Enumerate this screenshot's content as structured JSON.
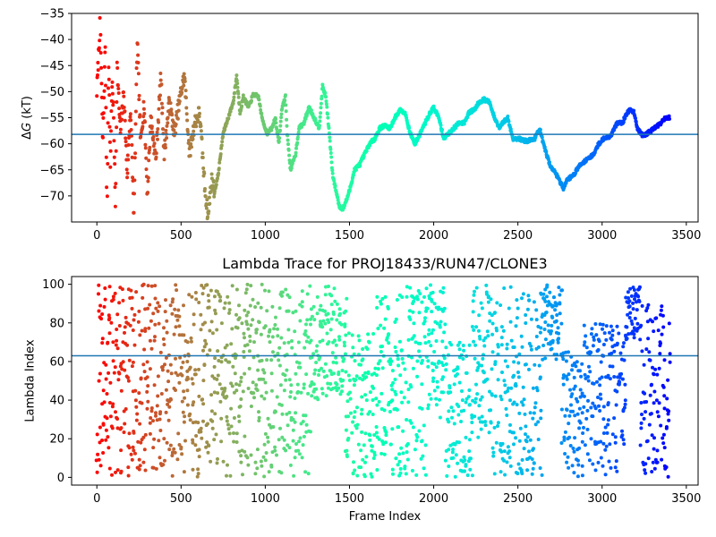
{
  "chart_data": [
    {
      "type": "scatter",
      "title": "",
      "xlabel": "",
      "ylabel": "ΔG (kT)",
      "ylabel_prefix": "Δ",
      "ylabel_italic": "G",
      "ylabel_suffix": " (kT)",
      "xlim": [
        -150,
        3570
      ],
      "ylim": [
        -75,
        -35
      ],
      "xticks": [
        0,
        500,
        1000,
        1500,
        2000,
        2500,
        3000,
        3500
      ],
      "yticks": [
        -70,
        -65,
        -60,
        -55,
        -50,
        -45,
        -40,
        -35
      ],
      "hline": -58.2,
      "hline_color": "#1f77b4",
      "colormap": "rainbow_reversed",
      "frames": 3400,
      "trace_keypoints": [
        [
          0,
          -50
        ],
        [
          20,
          -36
        ],
        [
          35,
          -60
        ],
        [
          50,
          -41
        ],
        [
          60,
          -75
        ],
        [
          70,
          -44
        ],
        [
          80,
          -64
        ],
        [
          90,
          -48
        ],
        [
          100,
          -55
        ],
        [
          110,
          -72
        ],
        [
          120,
          -45
        ],
        [
          140,
          -58
        ],
        [
          160,
          -50
        ],
        [
          180,
          -66
        ],
        [
          200,
          -53
        ],
        [
          220,
          -74
        ],
        [
          240,
          -40
        ],
        [
          260,
          -60
        ],
        [
          280,
          -52
        ],
        [
          300,
          -70
        ],
        [
          320,
          -55
        ],
        [
          350,
          -63
        ],
        [
          380,
          -47
        ],
        [
          400,
          -62
        ],
        [
          430,
          -52
        ],
        [
          460,
          -58
        ],
        [
          500,
          -50
        ],
        [
          520,
          -47
        ],
        [
          550,
          -62
        ],
        [
          580,
          -56
        ],
        [
          610,
          -54
        ],
        [
          640,
          -68
        ],
        [
          660,
          -74
        ],
        [
          680,
          -67
        ],
        [
          700,
          -69
        ],
        [
          720,
          -66
        ],
        [
          750,
          -58
        ],
        [
          780,
          -55
        ],
        [
          810,
          -52
        ],
        [
          830,
          -47
        ],
        [
          850,
          -54
        ],
        [
          870,
          -51
        ],
        [
          900,
          -53
        ],
        [
          930,
          -50.5
        ],
        [
          960,
          -51
        ],
        [
          980,
          -55
        ],
        [
          1010,
          -58
        ],
        [
          1040,
          -57
        ],
        [
          1060,
          -55
        ],
        [
          1080,
          -60
        ],
        [
          1100,
          -53
        ],
        [
          1120,
          -51
        ],
        [
          1130,
          -58
        ],
        [
          1150,
          -65
        ],
        [
          1180,
          -62
        ],
        [
          1200,
          -57
        ],
        [
          1230,
          -56
        ],
        [
          1260,
          -53
        ],
        [
          1290,
          -55
        ],
        [
          1320,
          -57
        ],
        [
          1340,
          -49
        ],
        [
          1360,
          -51
        ],
        [
          1380,
          -58
        ],
        [
          1400,
          -66
        ],
        [
          1420,
          -69
        ],
        [
          1440,
          -72
        ],
        [
          1460,
          -72.5
        ],
        [
          1480,
          -71
        ],
        [
          1500,
          -69
        ],
        [
          1530,
          -65
        ],
        [
          1560,
          -64
        ],
        [
          1590,
          -62
        ],
        [
          1620,
          -60
        ],
        [
          1650,
          -59
        ],
        [
          1680,
          -57
        ],
        [
          1710,
          -56.5
        ],
        [
          1740,
          -57
        ],
        [
          1770,
          -55
        ],
        [
          1800,
          -53.5
        ],
        [
          1830,
          -54
        ],
        [
          1860,
          -58
        ],
        [
          1890,
          -60
        ],
        [
          1920,
          -58
        ],
        [
          1950,
          -56
        ],
        [
          1980,
          -54
        ],
        [
          2000,
          -53
        ],
        [
          2030,
          -55
        ],
        [
          2060,
          -59
        ],
        [
          2090,
          -58
        ],
        [
          2120,
          -57
        ],
        [
          2150,
          -56
        ],
        [
          2180,
          -56
        ],
        [
          2210,
          -54
        ],
        [
          2240,
          -53.5
        ],
        [
          2270,
          -52
        ],
        [
          2300,
          -51.5
        ],
        [
          2330,
          -52
        ],
        [
          2360,
          -55
        ],
        [
          2390,
          -57
        ],
        [
          2410,
          -56
        ],
        [
          2440,
          -55
        ],
        [
          2470,
          -59
        ],
        [
          2500,
          -59
        ],
        [
          2550,
          -59.5
        ],
        [
          2600,
          -59
        ],
        [
          2630,
          -57
        ],
        [
          2650,
          -60
        ],
        [
          2690,
          -64
        ],
        [
          2730,
          -66
        ],
        [
          2770,
          -68.5
        ],
        [
          2790,
          -67
        ],
        [
          2830,
          -66
        ],
        [
          2870,
          -64
        ],
        [
          2910,
          -63
        ],
        [
          2950,
          -62
        ],
        [
          2980,
          -60
        ],
        [
          3010,
          -59
        ],
        [
          3050,
          -58.5
        ],
        [
          3090,
          -56
        ],
        [
          3120,
          -56
        ],
        [
          3150,
          -54
        ],
        [
          3170,
          -53.5
        ],
        [
          3190,
          -54
        ],
        [
          3210,
          -57
        ],
        [
          3240,
          -58.5
        ],
        [
          3270,
          -58
        ],
        [
          3310,
          -57
        ],
        [
          3350,
          -56
        ],
        [
          3380,
          -55
        ],
        [
          3400,
          -55
        ]
      ]
    },
    {
      "type": "scatter",
      "title": "Lambda Trace for PROJ18433/RUN47/CLONE3",
      "xlabel": "Frame Index",
      "ylabel": "Lambda Index",
      "xlim": [
        -150,
        3570
      ],
      "ylim": [
        -4,
        104
      ],
      "xticks": [
        0,
        500,
        1000,
        1500,
        2000,
        2500,
        3000,
        3500
      ],
      "yticks": [
        0,
        20,
        40,
        60,
        80,
        100
      ],
      "hline": 63,
      "hline_color": "#1f77b4",
      "colormap": "rainbow_reversed",
      "frames": 3400,
      "segments": [
        [
          0,
          80,
          0,
          100
        ],
        [
          80,
          650,
          0,
          100
        ],
        [
          650,
          760,
          5,
          100
        ],
        [
          760,
          870,
          0,
          100
        ],
        [
          870,
          1000,
          0,
          100
        ],
        [
          1000,
          1130,
          0,
          100
        ],
        [
          1130,
          1270,
          0,
          100
        ],
        [
          1270,
          1480,
          40,
          100
        ],
        [
          1480,
          1660,
          0,
          75
        ],
        [
          1660,
          1830,
          0,
          95
        ],
        [
          1830,
          1960,
          0,
          100
        ],
        [
          1960,
          2070,
          30,
          100
        ],
        [
          2070,
          2230,
          0,
          70
        ],
        [
          2230,
          2350,
          20,
          100
        ],
        [
          2350,
          2500,
          0,
          100
        ],
        [
          2500,
          2640,
          0,
          100
        ],
        [
          2640,
          2760,
          60,
          100
        ],
        [
          2760,
          2880,
          0,
          65
        ],
        [
          2880,
          3000,
          0,
          80
        ],
        [
          3000,
          3140,
          0,
          80
        ],
        [
          3140,
          3230,
          70,
          100
        ],
        [
          3230,
          3400,
          0,
          90
        ]
      ]
    }
  ]
}
